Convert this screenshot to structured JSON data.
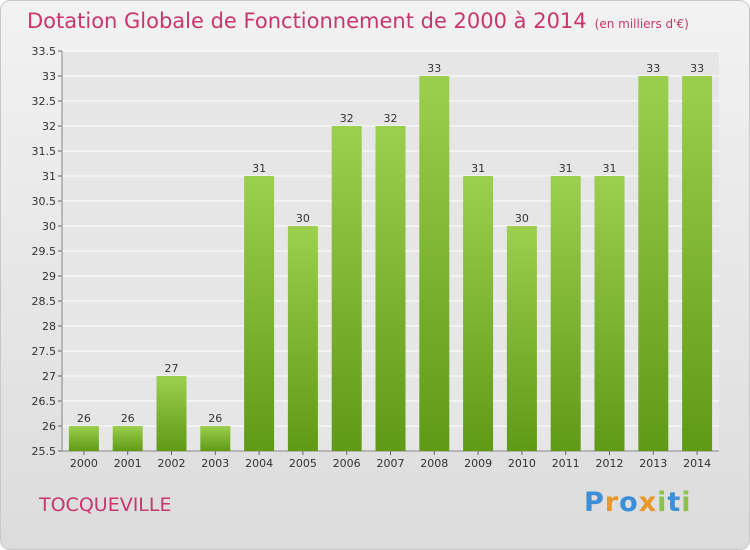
{
  "title": "Dotation Globale de Fonctionnement de 2000 à 2014",
  "subtitle": "(en milliers d'€)",
  "commune": "TOCQUEVILLE",
  "logo_text": "Proxiti",
  "colors": {
    "title": "#c8366e",
    "bar_top": "#9ccf4e",
    "bar_bottom": "#5f9a16",
    "grid": "#ffffff"
  },
  "chart_data": {
    "type": "bar",
    "title": "Dotation Globale de Fonctionnement de 2000 à 2014",
    "subtitle": "(en milliers d'€)",
    "categories": [
      "2000",
      "2001",
      "2002",
      "2003",
      "2004",
      "2005",
      "2006",
      "2007",
      "2008",
      "2009",
      "2010",
      "2011",
      "2012",
      "2013",
      "2014"
    ],
    "values": [
      26,
      26,
      27,
      26,
      31,
      30,
      32,
      32,
      33,
      31,
      30,
      31,
      31,
      33,
      33
    ],
    "ylim": [
      25.5,
      33.5
    ],
    "yticks": [
      "25.5",
      "26",
      "26.5",
      "27",
      "27.5",
      "28",
      "28.5",
      "29",
      "29.5",
      "30",
      "30.5",
      "31",
      "31.5",
      "32",
      "32.5",
      "33",
      "33.5"
    ],
    "grid": true,
    "legend": "none"
  }
}
